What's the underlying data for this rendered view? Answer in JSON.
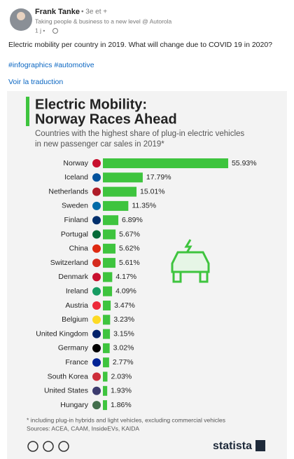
{
  "post": {
    "author": "Frank Tanke",
    "degree": "• 3e et +",
    "headline": "Taking people & business to a new level @ Autorola",
    "time": "1 j •",
    "text": "Electric mobility per country in 2019. What will change due to COVID 19 in 2020?",
    "hashtags": "#infographics #automotive",
    "translate": "Voir la traduction"
  },
  "chart_data": {
    "type": "bar",
    "orientation": "horizontal",
    "title": [
      "Electric Mobility:",
      "Norway Races Ahead"
    ],
    "subtitle": [
      "Countries with the highest share of plug-in electric vehicles",
      "in new passenger car sales in 2019*"
    ],
    "categories": [
      "Norway",
      "Iceland",
      "Netherlands",
      "Sweden",
      "Finland",
      "Portugal",
      "China",
      "Switzerland",
      "Denmark",
      "Ireland",
      "Austria",
      "Belgium",
      "United Kingdom",
      "Germany",
      "France",
      "South Korea",
      "United States",
      "Hungary"
    ],
    "values": [
      55.93,
      17.79,
      15.01,
      11.35,
      6.89,
      5.67,
      5.62,
      5.61,
      4.17,
      4.09,
      3.47,
      3.23,
      3.15,
      3.02,
      2.77,
      2.03,
      1.93,
      1.86
    ],
    "value_labels": [
      "55.93%",
      "17.79%",
      "15.01%",
      "11.35%",
      "6.89%",
      "5.67%",
      "5.62%",
      "5.61%",
      "4.17%",
      "4.09%",
      "3.47%",
      "3.23%",
      "3.15%",
      "3.02%",
      "2.77%",
      "2.03%",
      "1.93%",
      "1.86%"
    ],
    "color": "#3ec43e",
    "footnote": "* including plug-in hybrids and light vehicles, excluding commercial vehicles",
    "sources": "Sources: ACEA, CAAM, InsideEVs, KAIDA",
    "logo": "statista"
  }
}
